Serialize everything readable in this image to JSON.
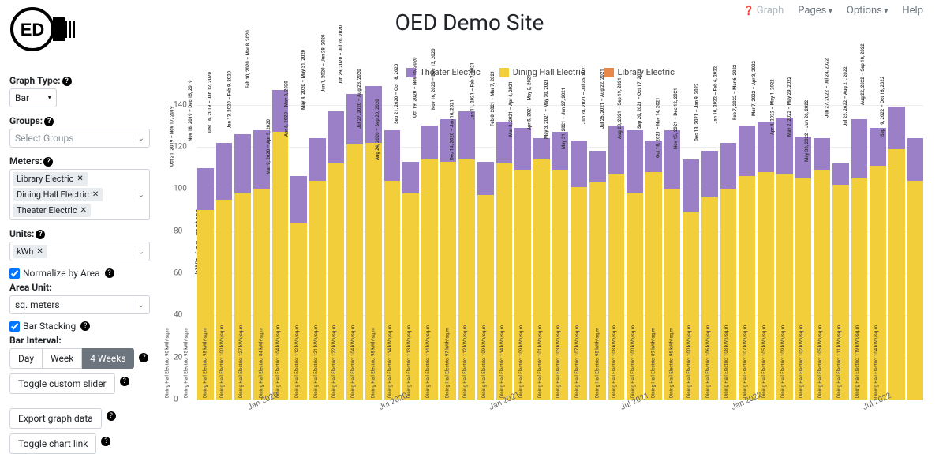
{
  "title": "OED Demo Site",
  "nav": {
    "graph": "Graph",
    "pages": "Pages",
    "options": "Options",
    "help": "Help"
  },
  "sidebar": {
    "graph_type_label": "Graph Type:",
    "graph_type_value": "Bar",
    "groups_label": "Groups:",
    "groups_placeholder": "Select Groups",
    "meters_label": "Meters:",
    "meters": [
      "Library Electric",
      "Dining Hall Electric",
      "Theater Electric"
    ],
    "units_label": "Units:",
    "units": [
      "kWh"
    ],
    "normalize_label": "Normalize by Area",
    "normalize_checked": true,
    "area_unit_label": "Area Unit:",
    "area_unit_value": "sq. meters",
    "stacking_label": "Bar Stacking",
    "stacking_checked": true,
    "interval_label": "Bar Interval:",
    "interval_options": [
      "Day",
      "Week",
      "4 Weeks"
    ],
    "interval_active": 2,
    "toggle_slider": "Toggle custom slider",
    "export": "Export graph data",
    "toggle_link": "Toggle chart link"
  },
  "chart": {
    "type": "stacked-bar",
    "ylabel": "kWh / sq. meters",
    "ylim": [
      0,
      150
    ],
    "yticks": [
      0,
      20,
      40,
      60,
      80,
      100,
      120,
      140
    ],
    "series": [
      {
        "name": "Theater Electric",
        "color": "#9b7fc7"
      },
      {
        "name": "Dining Hall Electric",
        "color": "#f2ce3b"
      },
      {
        "name": "Library Electric",
        "color": "#e8894a"
      }
    ],
    "xticks": [
      {
        "label": "Jan 2020",
        "pos": 3
      },
      {
        "label": "Jul 2020",
        "pos": 10
      },
      {
        "label": "Jan 2021",
        "pos": 16
      },
      {
        "label": "Jul 2021",
        "pos": 23
      },
      {
        "label": "Jan 2022",
        "pos": 29
      },
      {
        "label": "Jul 2022",
        "pos": 36
      }
    ],
    "bars": [
      {
        "period": "Oct 21, 2019 – Nov 17, 2019",
        "theater": 20,
        "dining": 90,
        "library": 0
      },
      {
        "period": "Nov 18, 2019 – Dec 15, 2019",
        "theater": 27,
        "dining": 95,
        "library": 0
      },
      {
        "period": "Dec 16, 2019 – Jan 12, 2020",
        "theater": 28,
        "dining": 98,
        "library": 0
      },
      {
        "period": "Jan 13, 2020 – Feb 9, 2020",
        "theater": 28,
        "dining": 100,
        "library": 0
      },
      {
        "period": "Feb 10, 2020 – Mar 8, 2020",
        "theater": 20,
        "dining": 127,
        "library": 0
      },
      {
        "period": "Mar 9, 2020 – Apr 5, 2020",
        "theater": 22,
        "dining": 84,
        "library": 0
      },
      {
        "period": "Apr 6, 2020 – May 3, 2020",
        "theater": 20,
        "dining": 104,
        "library": 0
      },
      {
        "period": "May 4, 2020 – May 31, 2020",
        "theater": 25,
        "dining": 112,
        "library": 0
      },
      {
        "period": "Jun 1, 2020 – Jun 28, 2020",
        "theater": 24,
        "dining": 121,
        "library": 0
      },
      {
        "period": "Jun 29, 2020 – Jul 26, 2020",
        "theater": 27,
        "dining": 122,
        "library": 0
      },
      {
        "period": "Jul 27, 2020 – Aug 23, 2020",
        "theater": 24,
        "dining": 104,
        "library": 0
      },
      {
        "period": "Aug 24, 2020 – Sep 20, 2020",
        "theater": 15,
        "dining": 98,
        "library": 0
      },
      {
        "period": "Sep 21, 2020 – Oct 18, 2020",
        "theater": 16,
        "dining": 114,
        "library": 0
      },
      {
        "period": "Oct 19, 2020 – Nov 15, 2020",
        "theater": 20,
        "dining": 113,
        "library": 0
      },
      {
        "period": "Nov 16, 2020 – Dec 13, 2020",
        "theater": 23,
        "dining": 114,
        "library": 0
      },
      {
        "period": "Dec 14, 2020 – Jan 10, 2021",
        "theater": 16,
        "dining": 97,
        "library": 0
      },
      {
        "period": "Jan 11, 2021 – Feb 7, 2021",
        "theater": 20,
        "dining": 112,
        "library": 0
      },
      {
        "period": "Feb 8, 2021 – Mar 7, 2021",
        "theater": 20,
        "dining": 109,
        "library": 0
      },
      {
        "period": "Mar 8, 2021 – Apr 4, 2021",
        "theater": 10,
        "dining": 114,
        "library": 0
      },
      {
        "period": "Apr 5, 2021 – May 2, 2021",
        "theater": 18,
        "dining": 109,
        "library": 0
      },
      {
        "period": "May 3, 2021 – May 30, 2021",
        "theater": 22,
        "dining": 101,
        "library": 0
      },
      {
        "period": "May 31, 2021 – Jun 27, 2021",
        "theater": 15,
        "dining": 103,
        "library": 0
      },
      {
        "period": "Jun 28, 2021 – Jul 25, 2021",
        "theater": 23,
        "dining": 107,
        "library": 0
      },
      {
        "period": "Jul 26, 2021 – Aug 22, 2021",
        "theater": 30,
        "dining": 98,
        "library": 0
      },
      {
        "period": "Aug 23, 2021 – Sep 19, 2021",
        "theater": 15,
        "dining": 108,
        "library": 0
      },
      {
        "period": "Sep 20, 2021 – Oct 17, 2021",
        "theater": 28,
        "dining": 100,
        "library": 0
      },
      {
        "period": "Oct 18, 2021 – Nov 14, 2021",
        "theater": 25,
        "dining": 89,
        "library": 0
      },
      {
        "period": "Nov 15, 2021 – Dec 12, 2021",
        "theater": 22,
        "dining": 96,
        "library": 0
      },
      {
        "period": "Dec 13, 2021 – Jan 9, 2022",
        "theater": 22,
        "dining": 100,
        "library": 0
      },
      {
        "period": "Jan 10, 2022 – Feb 6, 2022",
        "theater": 24,
        "dining": 106,
        "library": 0
      },
      {
        "period": "Feb 7, 2022 – Mar 6, 2022",
        "theater": 24,
        "dining": 108,
        "library": 0
      },
      {
        "period": "Mar 7, 2022 – Apr 3, 2022",
        "theater": 27,
        "dining": 107,
        "library": 0
      },
      {
        "period": "Apr 4, 2022 – May 1, 2022",
        "theater": 20,
        "dining": 105,
        "library": 0
      },
      {
        "period": "May 2, 2022 – May 29, 2022",
        "theater": 15,
        "dining": 109,
        "library": 0
      },
      {
        "period": "May 30, 2022 – Jun 26, 2022",
        "theater": 10,
        "dining": 102,
        "library": 0
      },
      {
        "period": "Jun 27, 2022 – Jul 24, 2022",
        "theater": 28,
        "dining": 105,
        "library": 0
      },
      {
        "period": "Jul 25, 2022 – Aug 21, 2022",
        "theater": 18,
        "dining": 111,
        "library": 0
      },
      {
        "period": "Aug 22, 2022 – Sep 18, 2022",
        "theater": 20,
        "dining": 119,
        "library": 0
      },
      {
        "period": "Sep 19, 2022 – Oct 16, 2022",
        "theater": 20,
        "dining": 104,
        "library": 0
      }
    ]
  }
}
